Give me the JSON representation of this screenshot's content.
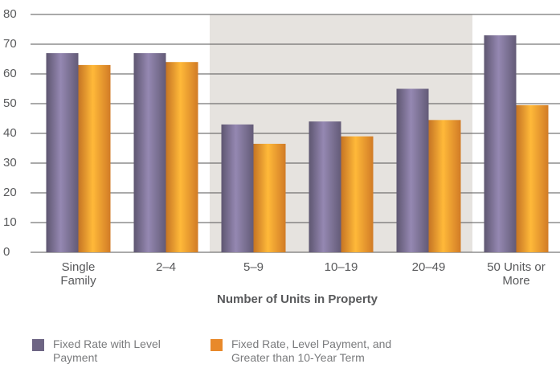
{
  "chart_data": {
    "type": "bar",
    "x_label": "Number of Units in Property",
    "categories": [
      "Single Family",
      "2–4",
      "5–9",
      "10–19",
      "20–49",
      "50 Units or More"
    ],
    "series": [
      {
        "name": "Fixed Rate with Level Payment",
        "color": "#6e6584",
        "values": [
          67,
          67,
          43,
          44,
          55,
          73
        ]
      },
      {
        "name": "Fixed Rate, Level Payment, and Greater than 10-Year Term",
        "color": "#e8892a",
        "values": [
          63,
          64,
          36.5,
          39,
          44.5,
          49.5
        ]
      }
    ],
    "ylim": [
      0,
      80
    ],
    "yticks": [
      0,
      10,
      20,
      30,
      40,
      50,
      60,
      70,
      80
    ],
    "grid": true
  }
}
